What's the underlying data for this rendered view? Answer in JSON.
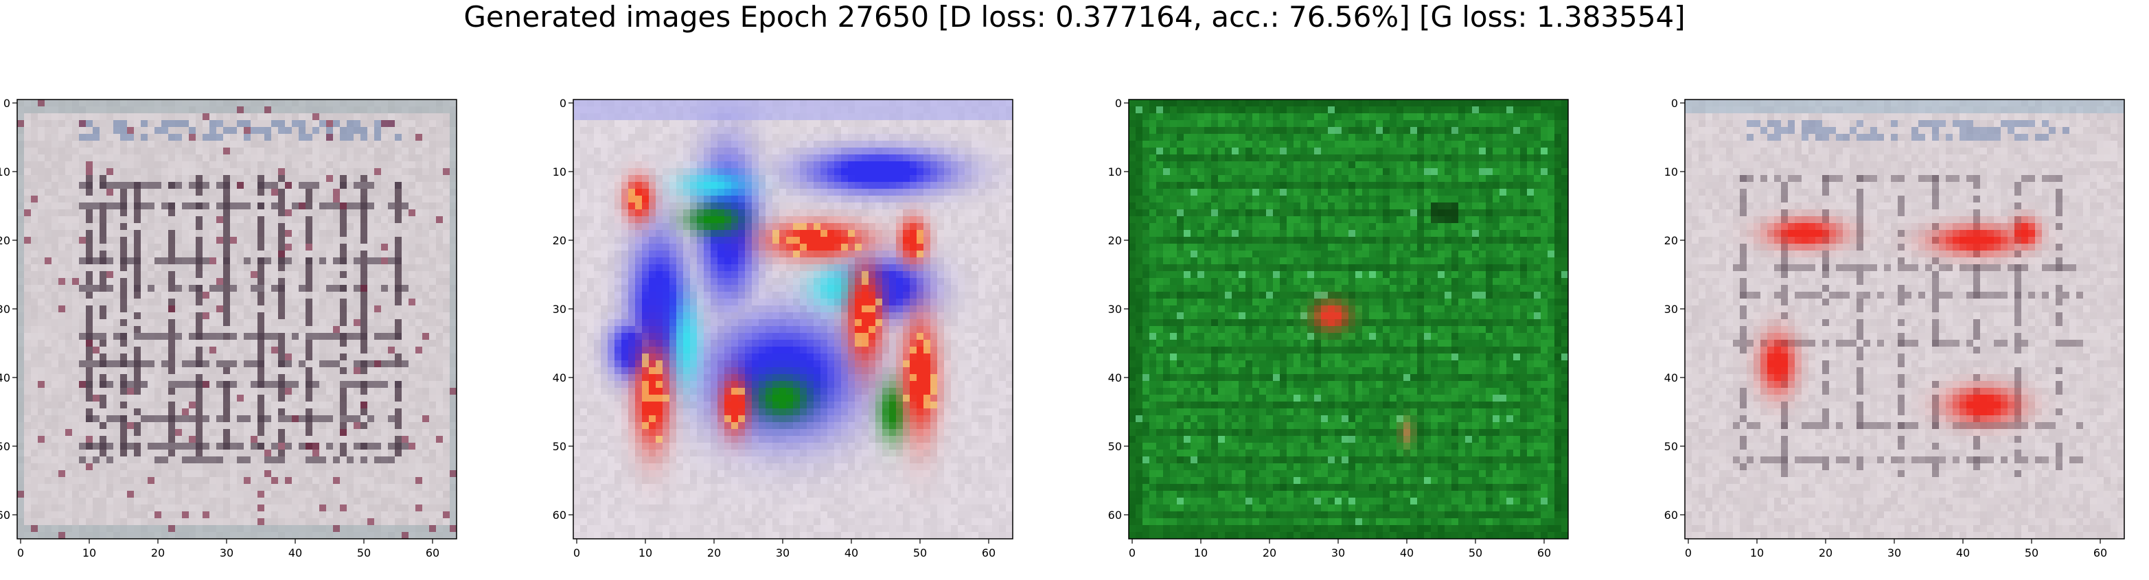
{
  "figure": {
    "title": "Generated images Epoch 27650 [D loss: 0.377164, acc.: 76.56%] [G loss: 1.383554]"
  },
  "chart_data": [
    {
      "type": "heatmap",
      "panel": 1,
      "description_of_content": "generated 64x64 RGB image, mostly pale grey/pink with dark vertical and horizontal grid-like strokes",
      "x_ticks": [
        0,
        10,
        20,
        30,
        40,
        50,
        60
      ],
      "y_ticks": [
        0,
        10,
        20,
        30,
        40,
        50,
        60
      ],
      "xlim": [
        -0.5,
        63.5
      ],
      "ylim": [
        63.5,
        -0.5
      ],
      "grid": false,
      "colors": {
        "background": "#cfc4c8",
        "accent": "#3a2a33"
      }
    },
    {
      "type": "heatmap",
      "panel": 2,
      "description_of_content": "generated 64x64 RGB image with large blue, red, cyan and green blobs on a pale background",
      "x_ticks": [
        0,
        10,
        20,
        30,
        40,
        50,
        60
      ],
      "y_ticks": [
        0,
        10,
        20,
        30,
        40,
        50,
        60
      ],
      "xlim": [
        -0.5,
        63.5
      ],
      "ylim": [
        63.5,
        -0.5
      ],
      "grid": false,
      "colors": {
        "background": "#d8d0d8",
        "blue": "#3030f0",
        "red": "#f03020",
        "cyan": "#30e0f0",
        "green": "#109010"
      }
    },
    {
      "type": "heatmap",
      "panel": 3,
      "description_of_content": "generated 64x64 RGB image, mostly green with faint grid lines and a small red spot near the centre",
      "x_ticks": [
        0,
        10,
        20,
        30,
        40,
        50,
        60
      ],
      "y_ticks": [
        0,
        10,
        20,
        30,
        40,
        50,
        60
      ],
      "xlim": [
        -0.5,
        63.5
      ],
      "ylim": [
        63.5,
        -0.5
      ],
      "grid": false,
      "colors": {
        "background": "#1f8a2a",
        "dark": "#0d5a14",
        "red": "#e03a2a"
      }
    },
    {
      "type": "heatmap",
      "panel": 4,
      "description_of_content": "generated 64x64 RGB image, pale grey/pink with grid strokes and several blurred red blobs",
      "x_ticks": [
        0,
        10,
        20,
        30,
        40,
        50,
        60
      ],
      "y_ticks": [
        0,
        10,
        20,
        30,
        40,
        50,
        60
      ],
      "xlim": [
        -0.5,
        63.5
      ],
      "ylim": [
        63.5,
        -0.5
      ],
      "grid": false,
      "colors": {
        "background": "#d3c8cc",
        "red": "#f02a20",
        "accent": "#5a4a55"
      }
    }
  ]
}
